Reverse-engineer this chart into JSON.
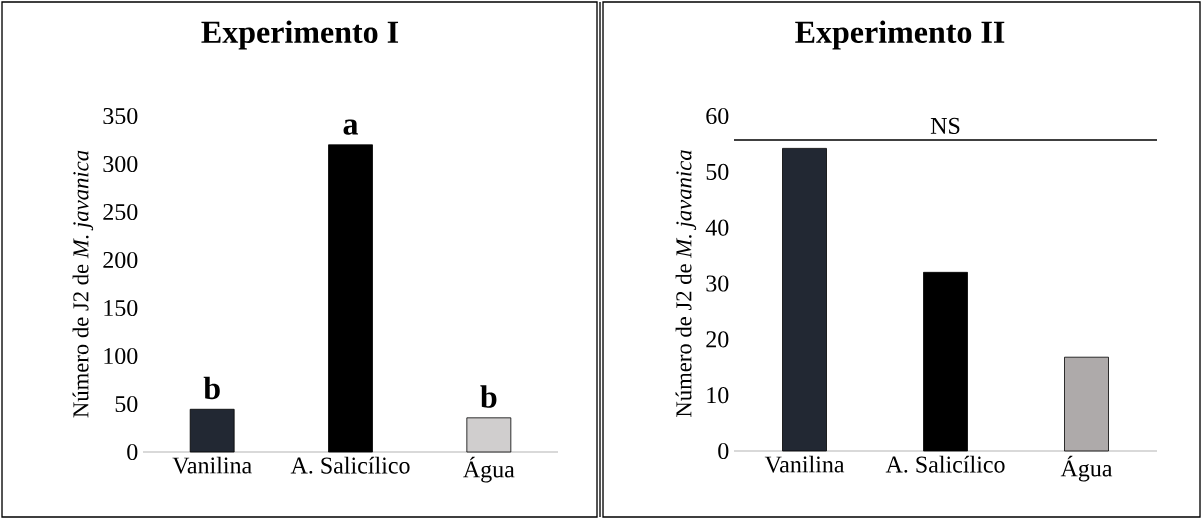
{
  "chart_data": [
    {
      "type": "bar",
      "title": "Experimento I",
      "ylabel": "Número de J2 de *M. javanica*",
      "categories": [
        "Vanilina",
        "A. Salicílico",
        "Água"
      ],
      "values": [
        44.5,
        320,
        35.6
      ],
      "colors": [
        "#222833",
        "#000000",
        "#d0cece"
      ],
      "ylim": [
        0,
        350
      ],
      "yticks": [
        0,
        50,
        100,
        150,
        200,
        250,
        300,
        350
      ],
      "grid": false,
      "annotations": [
        {
          "text": "b",
          "x": "Vanilina",
          "y": 44.5
        },
        {
          "text": "a",
          "x": "A. Salicílico",
          "y": 320
        },
        {
          "text": "b",
          "x": "Água",
          "y": 35.6
        }
      ]
    },
    {
      "type": "bar",
      "title": "Experimento II",
      "ylabel": "Número de J2 de *M. javanica*",
      "categories": [
        "Vanilina",
        "A. Salicílico",
        "Água"
      ],
      "values": [
        54.2,
        32,
        16.8
      ],
      "colors": [
        "#222833",
        "#000000",
        "#aeaaaa"
      ],
      "ylim": [
        0,
        60
      ],
      "yticks": [
        0,
        10,
        20,
        30,
        40,
        50,
        60
      ],
      "grid": false,
      "ref_lines": [
        {
          "axis": "y",
          "value": 55.7,
          "label": "NS",
          "color": "#000000"
        }
      ]
    }
  ]
}
